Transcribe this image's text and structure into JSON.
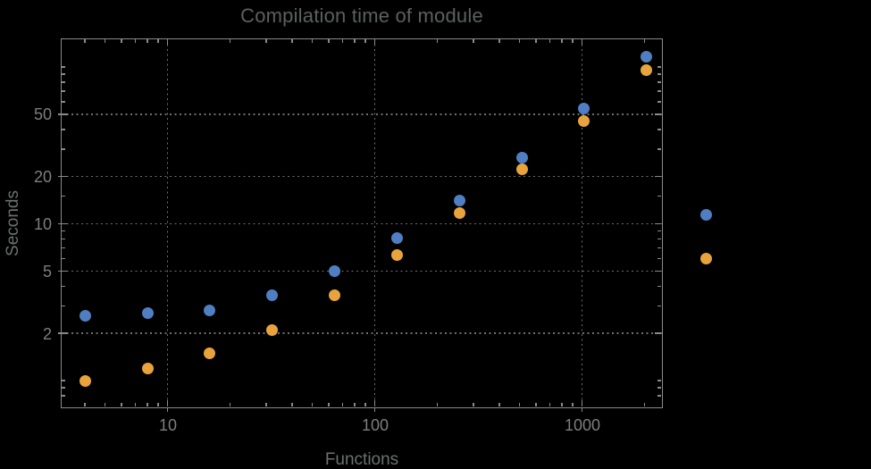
{
  "chart_data": {
    "type": "scatter",
    "title": "Compilation time of module",
    "xlabel": "Functions",
    "ylabel": "Seconds",
    "x_scale": "log",
    "y_scale": "log",
    "xlim": [
      3.05,
      2430
    ],
    "ylim": [
      0.67,
      153
    ],
    "grid": {
      "style": "dotted",
      "at": "labeled ticks only"
    },
    "x_ticks": [
      {
        "label": "10",
        "value": 10
      },
      {
        "label": "100",
        "value": 100
      },
      {
        "label": "1000",
        "value": 1000
      }
    ],
    "y_ticks": [
      {
        "label": "50",
        "value": 50
      },
      {
        "label": "20",
        "value": 20
      },
      {
        "label": "10",
        "value": 10
      },
      {
        "label": "5",
        "value": 5
      },
      {
        "label": "2",
        "value": 2
      }
    ],
    "x": [
      4,
      8,
      16,
      32,
      64,
      128,
      256,
      512,
      1024,
      2048
    ],
    "series": [
      {
        "name": "series-1",
        "marker": "disk",
        "color": "#4F7EC2",
        "values": [
          2.6,
          2.7,
          2.8,
          3.5,
          5.0,
          8.1,
          14.1,
          26.5,
          54,
          116
        ]
      },
      {
        "name": "series-2",
        "marker": "disk",
        "color": "#E8A33C",
        "values": [
          1.0,
          1.2,
          1.5,
          2.1,
          3.5,
          6.3,
          11.7,
          22.3,
          45,
          95
        ]
      }
    ],
    "legend": {
      "position": "right-of-plot",
      "labels_visible": false,
      "markers": [
        {
          "series": "series-1",
          "color": "#4F7EC2"
        },
        {
          "series": "series-2",
          "color": "#E8A33C"
        }
      ]
    }
  },
  "colors": {
    "background": "#000000",
    "title_text": "#5C6060",
    "axis_label_text": "#6C7070",
    "tick_label_text": "#7E7E7E",
    "frame": "#8A8A8A",
    "grid": "#6F6F6F"
  }
}
